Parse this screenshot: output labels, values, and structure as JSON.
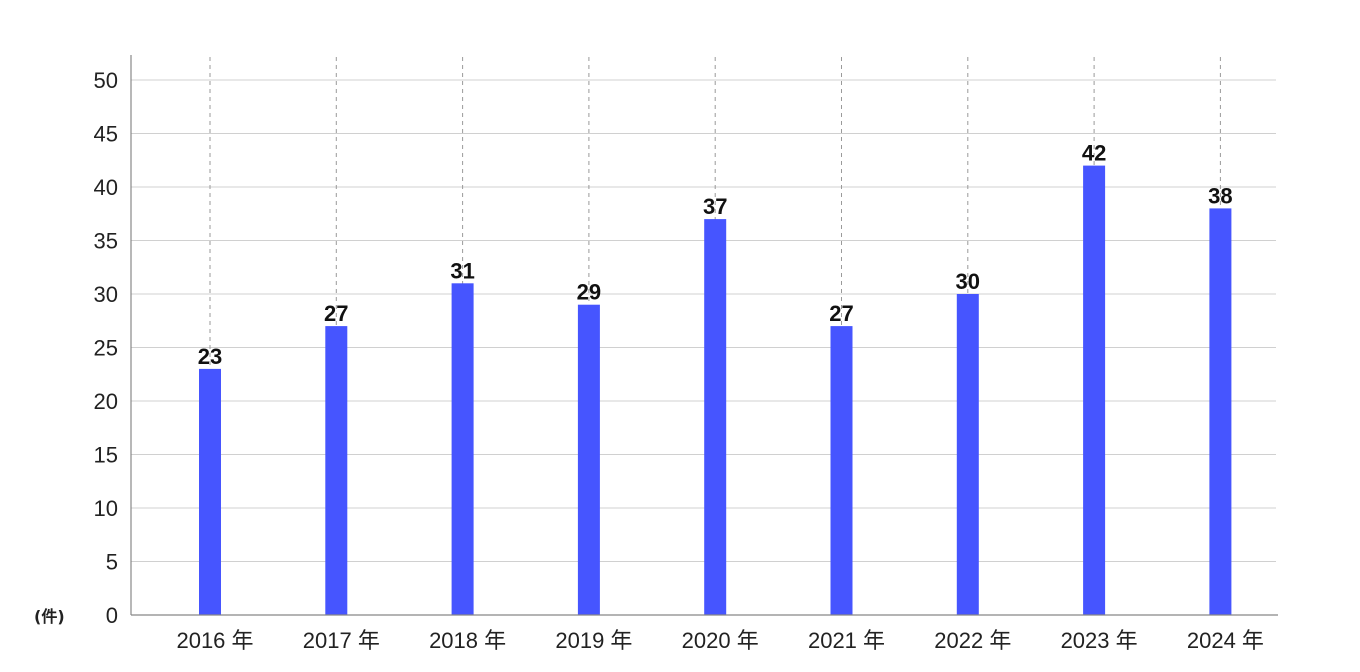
{
  "chart_data": {
    "type": "bar",
    "categories": [
      "2016 年",
      "2017 年",
      "2018 年",
      "2019 年",
      "2020 年",
      "2021 年",
      "2022 年",
      "2023 年",
      "2024 年"
    ],
    "values": [
      23,
      27,
      31,
      29,
      37,
      27,
      30,
      42,
      38
    ],
    "data_labels": [
      "23",
      "27",
      "31",
      "29",
      "37",
      "27",
      "30",
      "42",
      "38"
    ],
    "y_ticks": [
      "0",
      "5",
      "10",
      "15",
      "20",
      "25",
      "30",
      "35",
      "40",
      "45",
      "50"
    ],
    "ylim": [
      0,
      52.5
    ],
    "ylabel": "(件)",
    "title": "",
    "xlabel": "",
    "grid": true,
    "bar_color": "#4655ff"
  }
}
